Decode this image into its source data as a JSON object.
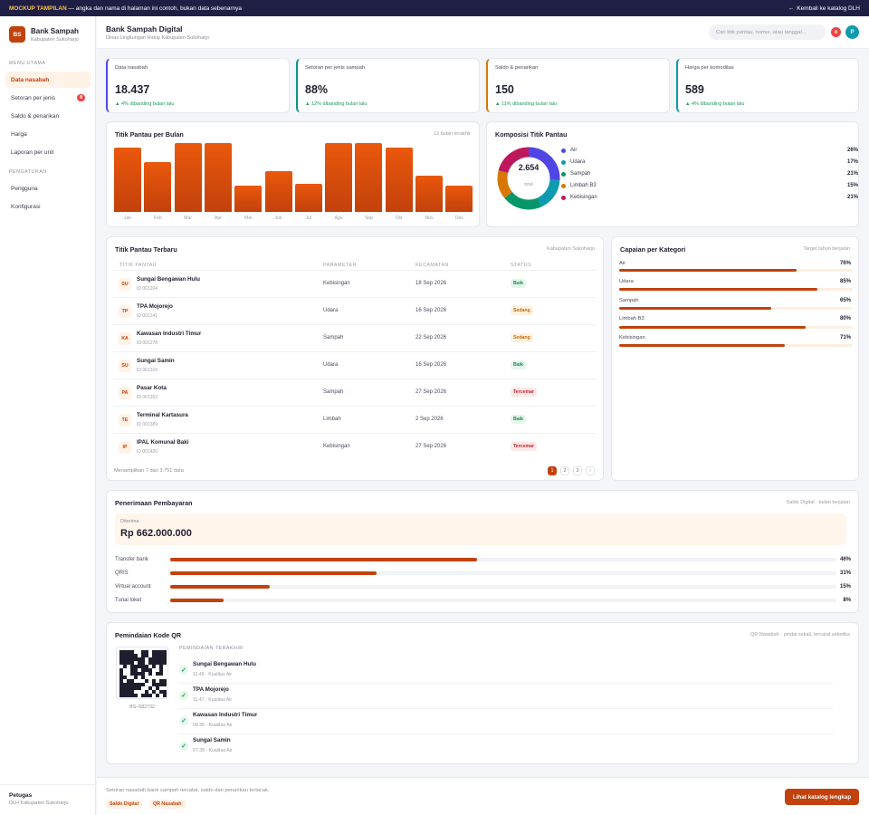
{
  "banner": {
    "tag": "MOCKUP TAMPILAN",
    "text": " — angka dan nama di halaman ini contoh, bukan data sebenarnya",
    "back": "Kembali ke katalog DLH"
  },
  "brand": {
    "initials": "BS",
    "name": "Bank Sampah",
    "sub": "Kabupaten Sukoharjo"
  },
  "sidebar": {
    "sec1": "MENU UTAMA",
    "sec2": "PENGATURAN",
    "items": [
      {
        "label": "Data nasabah"
      },
      {
        "label": "Setoran per jenis",
        "badge": "8"
      },
      {
        "label": "Saldo & penarikan"
      },
      {
        "label": "Harga"
      },
      {
        "label": "Laporan per unit"
      }
    ],
    "settings": [
      {
        "label": "Pengguna"
      },
      {
        "label": "Konfigurasi"
      }
    ],
    "user": {
      "name": "Petugas",
      "org": "DLH Kabupaten Sukoharjo"
    }
  },
  "header": {
    "title": "Bank Sampah Digital",
    "subtitle": "Dinas Lingkungan Hidup Kabupaten Sukoharjo",
    "search_placeholder": "Cari titik pantau, nomor, atau tanggal...",
    "badge": "8",
    "avatar": "P"
  },
  "kpis": [
    {
      "label": "Data nasabah",
      "value": "18.437",
      "delta": "▲ 4% dibanding bulan lalu",
      "color": "#4f46e5"
    },
    {
      "label": "Setoran per jenis sampah",
      "value": "88%",
      "delta": "▲ 12% dibanding bulan lalu",
      "color": "#0d9488"
    },
    {
      "label": "Saldo & penarikan",
      "value": "150",
      "delta": "▲ 11% dibanding bulan lalu",
      "color": "#d97706"
    },
    {
      "label": "Harga per komoditas",
      "value": "589",
      "delta": "▲ 4% dibanding bulan lalu",
      "color": "#0e9bb0"
    }
  ],
  "monthly": {
    "title": "Titik Pantau per Bulan",
    "note": "12 bulan terakhir"
  },
  "chart_data": [
    {
      "type": "bar",
      "title": "Titik Pantau per Bulan",
      "categories": [
        "Jan",
        "Feb",
        "Mar",
        "Apr",
        "Mei",
        "Jun",
        "Jul",
        "Agu",
        "Sep",
        "Okt",
        "Nov",
        "Des"
      ],
      "values": [
        70,
        54,
        75,
        75,
        29,
        44,
        31,
        75,
        75,
        70,
        39,
        29
      ],
      "ylim": [
        0,
        75
      ]
    },
    {
      "type": "pie",
      "title": "Komposisi Titik Pantau",
      "total": "2.654",
      "total_label": "total",
      "categories": [
        "Air",
        "Udara",
        "Sampah",
        "Limbah B3",
        "Kebisingan"
      ],
      "values": [
        26,
        17,
        21,
        15,
        21
      ],
      "colors": [
        "#4f46e5",
        "#0e9bb0",
        "#059669",
        "#d97706",
        "#be185d"
      ]
    }
  ],
  "composition": {
    "title": "Komposisi Titik Pantau",
    "pcts": [
      "26%",
      "17%",
      "21%",
      "15%",
      "21%"
    ]
  },
  "table": {
    "title": "Titik Pantau Terbaru",
    "note": "Kabupaten Sukoharjo",
    "headers": [
      "TITIK PANTAU",
      "PARAMETER",
      "KECAMATAN",
      "STATUS"
    ],
    "rows": [
      {
        "ini": "SU",
        "name": "Sungai Bengawan Hulu",
        "id": "ID 001204",
        "param": "Kebisingan",
        "date": "18 Sep 2026",
        "status": "Baik",
        "cls": "s-good"
      },
      {
        "ini": "TP",
        "name": "TPA Mojorejo",
        "id": "ID 001241",
        "param": "Udara",
        "date": "16 Sep 2026",
        "status": "Sedang",
        "cls": "s-mid"
      },
      {
        "ini": "KA",
        "name": "Kawasan Industri Timur",
        "id": "ID 001278",
        "param": "Sampah",
        "date": "22 Sep 2026",
        "status": "Sedang",
        "cls": "s-mid"
      },
      {
        "ini": "SU",
        "name": "Sungai Samin",
        "id": "ID 001315",
        "param": "Udara",
        "date": "16 Sep 2026",
        "status": "Baik",
        "cls": "s-good"
      },
      {
        "ini": "PA",
        "name": "Pasar Kota",
        "id": "ID 001352",
        "param": "Sampah",
        "date": "27 Sep 2026",
        "status": "Tercemar",
        "cls": "s-bad"
      },
      {
        "ini": "TE",
        "name": "Terminal Kartasura",
        "id": "ID 001389",
        "param": "Limbah",
        "date": "2 Sep 2026",
        "status": "Baik",
        "cls": "s-good"
      },
      {
        "ini": "IP",
        "name": "IPAL Komunal Baki",
        "id": "ID 001426",
        "param": "Kebisingan",
        "date": "27 Sep 2026",
        "status": "Tercemar",
        "cls": "s-bad"
      }
    ],
    "footer": "Menampilkan 7 dari 3.751 data",
    "pages": [
      "1",
      "2",
      "3",
      "›"
    ]
  },
  "categories": {
    "title": "Capaian per Kategori",
    "note": "Target tahun berjalan",
    "items": [
      {
        "label": "Air",
        "pct": "76%",
        "value": 76
      },
      {
        "label": "Udara",
        "pct": "85%",
        "value": 85
      },
      {
        "label": "Sampah",
        "pct": "65%",
        "value": 65
      },
      {
        "label": "Limbah B3",
        "pct": "80%",
        "value": 80
      },
      {
        "label": "Kebisingan",
        "pct": "71%",
        "value": 71
      }
    ]
  },
  "payments": {
    "title": "Penerimaan Pembayaran",
    "note": "Saldo Digital · bulan berjalan",
    "total_label": "Diterima",
    "total": "Rp 662.000.000",
    "items": [
      {
        "label": "Transfer bank",
        "pct": "46%",
        "value": 46
      },
      {
        "label": "QRIS",
        "pct": "31%",
        "value": 31
      },
      {
        "label": "Virtual account",
        "pct": "15%",
        "value": 15
      },
      {
        "label": "Tunai loket",
        "pct": "8%",
        "value": 8
      }
    ]
  },
  "qr": {
    "title": "Pemindaian Kode QR",
    "note": "QR Nasabah · pindai sekali, tercatat seketika",
    "code": "BS–582732",
    "recent_title": "PEMINDAIAN TERAKHIR",
    "scans": [
      {
        "name": "Sungai Bengawan Hulu",
        "sub": "11.49 · Kualitas Air"
      },
      {
        "name": "TPA Mojorejo",
        "sub": "11.47 · Kualitas Air"
      },
      {
        "name": "Kawasan Industri Timur",
        "sub": "09.36 · Kualitas Air"
      },
      {
        "name": "Sungai Samin",
        "sub": "07.38 · Kualitas Air"
      }
    ]
  },
  "footer": {
    "text": "Setoran nasabah bank sampah tercatat, saldo dan penarikan terlacak.",
    "chip1": "Saldo Digital",
    "chip2": "QR Nasabah",
    "cta": "Lihat katalog lengkap"
  }
}
